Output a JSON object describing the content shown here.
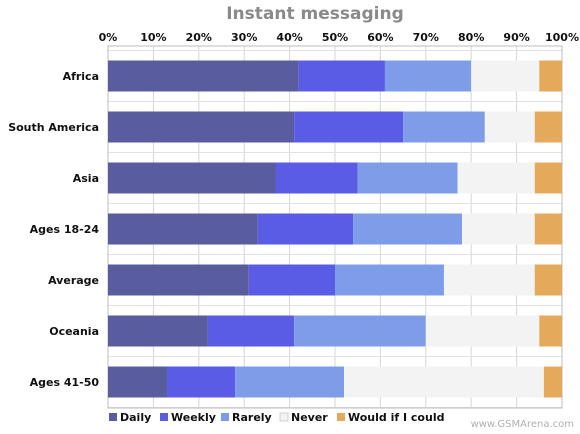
{
  "watermark": "www.GSMArena.com",
  "chart_data": {
    "type": "bar",
    "orientation": "horizontal",
    "stacked": true,
    "title": "Instant messaging",
    "xlabel": "",
    "ylabel": "",
    "xlim": [
      0,
      100
    ],
    "x_ticks": [
      "0%",
      "10%",
      "20%",
      "30%",
      "40%",
      "50%",
      "60%",
      "70%",
      "80%",
      "90%",
      "100%"
    ],
    "grid": true,
    "legend_position": "bottom",
    "categories": [
      "Africa",
      "South America",
      "Asia",
      "Ages 18-24",
      "Average",
      "Oceania",
      "Ages 41-50"
    ],
    "series": [
      {
        "name": "Daily",
        "color": "#595c9f",
        "values": [
          42,
          41,
          37,
          33,
          31,
          22,
          13
        ]
      },
      {
        "name": "Weekly",
        "color": "#5b5ce6",
        "values": [
          19,
          24,
          18,
          21,
          19,
          19,
          15
        ]
      },
      {
        "name": "Rarely",
        "color": "#7e9ce8",
        "values": [
          19,
          18,
          22,
          24,
          24,
          29,
          24
        ]
      },
      {
        "name": "Never",
        "color": "#f3f3f3",
        "values": [
          15,
          11,
          17,
          16,
          20,
          25,
          44
        ]
      },
      {
        "name": "Would if I could",
        "color": "#e5a95c",
        "values": [
          5,
          6,
          6,
          6,
          6,
          5,
          4
        ]
      }
    ]
  }
}
